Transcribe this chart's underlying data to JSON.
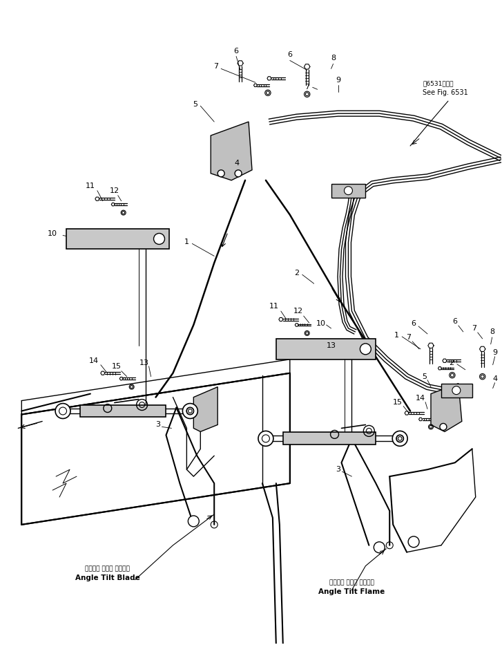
{
  "bg_color": "#ffffff",
  "fig_width": 7.27,
  "fig_height": 9.33,
  "dpi": 100,
  "labels": {
    "see_fig_jp": "第6531図参照",
    "see_fig_en": "See Fig. 6531",
    "blade_jp": "アングル チルト ブレード",
    "blade_en": "Angle Tilt Blade",
    "flame_jp": "アングル チルト フレーム",
    "flame_en": "Angle Tilt Flame"
  }
}
